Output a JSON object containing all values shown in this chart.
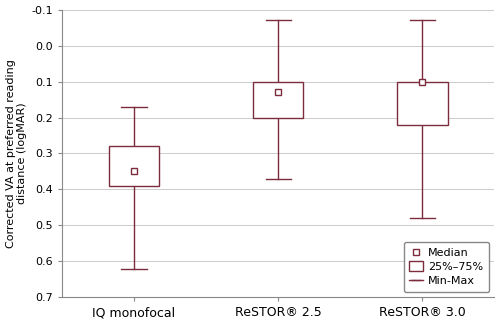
{
  "groups": [
    "IQ monofocal",
    "ReSTOR® 2.5",
    "ReSTOR® 3.0"
  ],
  "boxes": [
    {
      "min": 0.62,
      "q1": 0.39,
      "median": 0.35,
      "q3": 0.28,
      "max": 0.17
    },
    {
      "min": 0.37,
      "q1": 0.2,
      "median": 0.13,
      "q3": 0.1,
      "max": -0.07
    },
    {
      "min": 0.48,
      "q1": 0.22,
      "median": 0.1,
      "q3": 0.1,
      "max": -0.07
    }
  ],
  "ylabel": "Corrected VA at preferred reading\ndistance (logMAR)",
  "ylim": [
    0.7,
    -0.1
  ],
  "yticks": [
    -0.1,
    0.0,
    0.1,
    0.2,
    0.3,
    0.4,
    0.5,
    0.6,
    0.7
  ],
  "ytick_labels": [
    "-0.1",
    "0.0",
    "0.1",
    "0.2",
    "0.3",
    "0.4",
    "0.5",
    "0.6",
    "0.7"
  ],
  "box_color": "#7b2d3e",
  "box_facecolor": "white",
  "box_width": 0.35,
  "cap_ratio": 0.5,
  "legend_labels": [
    "Median",
    "25%–75%",
    "Min-Max"
  ],
  "figsize": [
    5.0,
    3.25
  ],
  "dpi": 100,
  "positions": [
    1,
    2,
    3
  ],
  "xlim": [
    0.5,
    3.5
  ],
  "spine_color": "#888888",
  "grid_color": "#cccccc",
  "tick_fontsize": 8,
  "ylabel_fontsize": 8,
  "xlabel_fontsize": 9,
  "legend_fontsize": 8
}
